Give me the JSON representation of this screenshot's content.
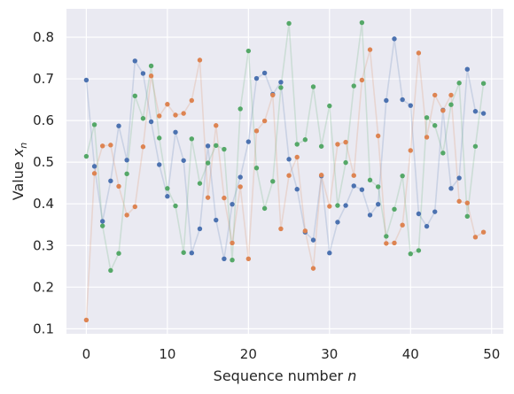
{
  "chart_data": {
    "type": "line",
    "xlabel": "Sequence number n",
    "ylabel": "Value x_n",
    "xlim": [
      -2.45,
      51.45
    ],
    "ylim": [
      0.088,
      0.868
    ],
    "xticks": [
      0,
      10,
      20,
      30,
      40,
      50
    ],
    "yticks": [
      0.1,
      0.2,
      0.3,
      0.4,
      0.5,
      0.6,
      0.7,
      0.8
    ],
    "xtick_labels": [
      "0",
      "10",
      "20",
      "30",
      "40",
      "50"
    ],
    "ytick_labels": [
      "0.1",
      "0.2",
      "0.3",
      "0.4",
      "0.5",
      "0.6",
      "0.7",
      "0.8"
    ],
    "grid": true,
    "legend": false,
    "background": "#eaeaf2",
    "markers": true,
    "line_alpha": 0.2,
    "x": [
      0,
      1,
      2,
      3,
      4,
      5,
      6,
      7,
      8,
      9,
      10,
      11,
      12,
      13,
      14,
      15,
      16,
      17,
      18,
      19,
      20,
      21,
      22,
      23,
      24,
      25,
      26,
      27,
      28,
      29,
      30,
      31,
      32,
      33,
      34,
      35,
      36,
      37,
      38,
      39,
      40,
      41,
      42,
      43,
      44,
      45,
      46,
      47,
      48,
      49
    ],
    "series": [
      {
        "color": "#4c72b0",
        "values": [
          0.697,
          0.49,
          0.358,
          0.455,
          0.587,
          0.505,
          0.743,
          0.713,
          0.597,
          0.494,
          0.418,
          0.572,
          0.504,
          0.282,
          0.34,
          0.539,
          0.361,
          0.268,
          0.399,
          0.464,
          0.549,
          0.701,
          0.714,
          0.663,
          0.692,
          0.507,
          0.435,
          0.332,
          0.313,
          0.467,
          0.282,
          0.356,
          0.396,
          0.443,
          0.434,
          0.373,
          0.399,
          0.648,
          0.796,
          0.65,
          0.636,
          0.376,
          0.346,
          0.381,
          0.625,
          0.437,
          0.462,
          0.723,
          0.622,
          0.617
        ]
      },
      {
        "color": "#dd8452",
        "values": [
          0.121,
          0.473,
          0.539,
          0.541,
          0.442,
          0.373,
          0.393,
          0.537,
          0.707,
          0.611,
          0.639,
          0.613,
          0.617,
          0.648,
          0.745,
          0.415,
          0.588,
          0.414,
          0.306,
          0.441,
          0.268,
          0.575,
          0.599,
          0.661,
          0.34,
          0.468,
          0.512,
          0.335,
          0.245,
          0.469,
          0.394,
          0.543,
          0.548,
          0.468,
          0.697,
          0.77,
          0.563,
          0.305,
          0.306,
          0.349,
          0.528,
          0.762,
          0.56,
          0.661,
          0.624,
          0.661,
          0.406,
          0.402,
          0.32,
          0.332
        ]
      },
      {
        "color": "#55a868",
        "values": [
          0.514,
          0.59,
          0.347,
          0.24,
          0.281,
          0.472,
          0.659,
          0.605,
          0.731,
          0.558,
          0.437,
          0.395,
          0.283,
          0.556,
          0.449,
          0.498,
          0.54,
          0.531,
          0.265,
          0.628,
          0.767,
          0.486,
          0.389,
          0.454,
          0.679,
          0.833,
          0.543,
          0.554,
          0.681,
          0.538,
          0.635,
          0.396,
          0.499,
          0.683,
          0.835,
          0.457,
          0.441,
          0.322,
          0.387,
          0.467,
          0.28,
          0.288,
          0.607,
          0.588,
          0.522,
          0.638,
          0.69,
          0.37,
          0.538,
          0.689
        ]
      }
    ]
  }
}
